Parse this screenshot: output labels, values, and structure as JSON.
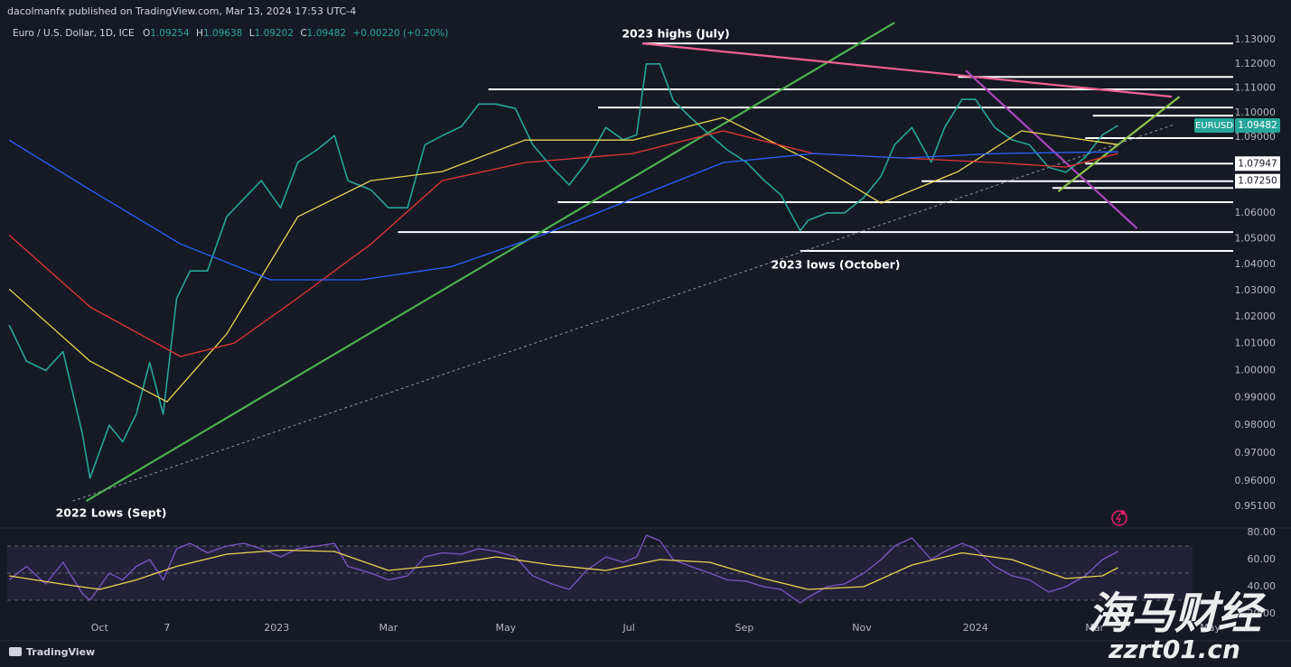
{
  "header": {
    "publisher": "dacolmanfx published on TradingView.com, Mar 13, 2024 17:53 UTC-4",
    "symbol": "Euro / U.S. Dollar, 1D, ICE",
    "ohlc": [
      {
        "label": "O",
        "value": 1.09254
      },
      {
        "label": "H",
        "value": 1.09638
      },
      {
        "label": "L",
        "value": 1.09202
      },
      {
        "label": "C",
        "value": 1.09482
      }
    ],
    "change": "+0.00220 (+0.20%)"
  },
  "footer": "TradingView",
  "watermark": [
    "海马财经",
    "zzrt01.cn"
  ],
  "chart_data": [
    {
      "type": "line",
      "log_scale": true,
      "grid": false,
      "xlim": [
        -48,
        618
      ],
      "ylim": [
        0.9441,
        1.1437
      ],
      "xticks": [
        {
          "value": 0,
          "label": "Oct"
        },
        {
          "value": 35,
          "label": "7"
        },
        {
          "value": 92,
          "label": "2023"
        },
        {
          "value": 150,
          "label": "Mar"
        },
        {
          "value": 211,
          "label": "May"
        },
        {
          "value": 275,
          "label": "Jul"
        },
        {
          "value": 335,
          "label": "Sep"
        },
        {
          "value": 396,
          "label": "Nov"
        },
        {
          "value": 455,
          "label": "2024"
        },
        {
          "value": 517,
          "label": "Mar"
        },
        {
          "value": 577,
          "label": "May"
        }
      ],
      "yticks": [
        {
          "value": 1.13,
          "label": "1.13000"
        },
        {
          "value": 1.12,
          "label": "1.12000"
        },
        {
          "value": 1.11,
          "label": "1.11000"
        },
        {
          "value": 1.1,
          "label": "1.10000"
        },
        {
          "value": 1.09,
          "label": "1.09000"
        },
        {
          "value": 1.06,
          "label": "1.06000"
        },
        {
          "value": 1.05,
          "label": "1.05000"
        },
        {
          "value": 1.04,
          "label": "1.04000"
        },
        {
          "value": 1.03,
          "label": "1.03000"
        },
        {
          "value": 1.02,
          "label": "1.02000"
        },
        {
          "value": 1.01,
          "label": "1.01000"
        },
        {
          "value": 1,
          "label": "1.00000"
        },
        {
          "value": 0.99,
          "label": "0.99000"
        },
        {
          "value": 0.98,
          "label": "0.98000"
        },
        {
          "value": 0.97,
          "label": "0.97000"
        },
        {
          "value": 0.96,
          "label": "0.96000"
        },
        {
          "value": 0.951,
          "label": "0.95100"
        }
      ],
      "series": [
        {
          "name": "EURUSD",
          "color": "#26a69a",
          "x": [
            -47,
            -38,
            -28,
            -19,
            -9,
            -5,
            5,
            12,
            19,
            26,
            33,
            40,
            47,
            56,
            66,
            75,
            84,
            94,
            103,
            113,
            122,
            129,
            141,
            150,
            160,
            169,
            178,
            188,
            197,
            206,
            216,
            225,
            235,
            244,
            253,
            263,
            272,
            279,
            284,
            291,
            298,
            307,
            317,
            326,
            336,
            345,
            354,
            364,
            368,
            378,
            387,
            397,
            406,
            413,
            422,
            432,
            439,
            448,
            455,
            465,
            474,
            483,
            493,
            502,
            512,
            521,
            529
          ],
          "values": [
            1.017,
            1.0035,
            1.0,
            1.007,
            0.977,
            0.961,
            0.98,
            0.974,
            0.984,
            1.003,
            0.984,
            1.027,
            1.0375,
            1.0375,
            1.0585,
            1.0656,
            1.0727,
            1.062,
            1.08,
            1.085,
            1.0907,
            1.0727,
            1.069,
            1.062,
            1.062,
            1.087,
            1.0907,
            1.0944,
            1.1035,
            1.1035,
            1.1017,
            1.087,
            1.078,
            1.071,
            1.08,
            1.094,
            1.089,
            1.091,
            1.12,
            1.12,
            1.105,
            1.098,
            1.091,
            1.085,
            1.08,
            1.073,
            1.067,
            1.053,
            1.057,
            1.06,
            1.06,
            1.066,
            1.0745,
            1.087,
            1.094,
            1.08,
            1.094,
            1.1054,
            1.1054,
            1.094,
            1.089,
            1.087,
            1.078,
            1.076,
            1.082,
            1.091,
            1.0948
          ]
        },
        {
          "color": "#e8d44d",
          "x": [
            -47,
            -5,
            35,
            66,
            103,
            141,
            178,
            221,
            277,
            324,
            371,
            406,
            446,
            479,
            529
          ],
          "values": [
            1.0306,
            1.0035,
            0.9885,
            1.0136,
            1.0585,
            1.0727,
            1.0763,
            1.0889,
            1.0889,
            1.098,
            1.0799,
            1.0638,
            1.0763,
            1.0926,
            1.0871
          ]
        },
        {
          "color": "#e53935",
          "x": [
            -47,
            -5,
            42,
            70,
            103,
            141,
            178,
            221,
            277,
            324,
            371,
            418,
            465,
            502,
            529
          ],
          "values": [
            1.0514,
            1.0238,
            1.0052,
            1.0102,
            1.0272,
            1.0479,
            1.0727,
            1.0799,
            1.0835,
            1.0926,
            1.0835,
            1.0817,
            1.0799,
            1.0781,
            1.0835
          ]
        },
        {
          "color": "#2962ff",
          "x": [
            -47,
            -5,
            42,
            89,
            136,
            183,
            230,
            277,
            324,
            371,
            418,
            465,
            529
          ],
          "values": [
            1.0889,
            1.0691,
            1.0479,
            1.0341,
            1.0341,
            1.0392,
            1.0514,
            1.0656,
            1.0799,
            1.0835,
            1.0817,
            1.0835,
            1.0842
          ]
        }
      ],
      "levels": [
        {
          "value": 1.1285,
          "start": 282
        },
        {
          "value": 1.1146,
          "start": 446
        },
        {
          "value": 1.1095,
          "start": 202
        },
        {
          "value": 1.1021,
          "start": 259
        },
        {
          "value": 1.0988,
          "start": 516
        },
        {
          "value": 1.0897,
          "start": 512
        },
        {
          "value": 1.07947,
          "start": 512
        },
        {
          "value": 1.0725,
          "start": 427
        },
        {
          "value": 1.0698,
          "start": 495
        },
        {
          "value": 1.0642,
          "start": 238
        },
        {
          "value": 1.0525,
          "start": 155
        },
        {
          "value": 1.0452,
          "start": 364
        }
      ],
      "trendlines": [
        {
          "color": "#4caf50",
          "x": [
            -7,
            413
          ],
          "values": [
            0.9529,
            1.1372
          ]
        },
        {
          "color": "#f06292",
          "x": [
            282,
            557
          ],
          "values": [
            1.1285,
            1.1065
          ]
        },
        {
          "color": "#ab47bc",
          "x": [
            450,
            539
          ],
          "values": [
            1.1173,
            1.0539
          ]
        },
        {
          "color": "#8bc34a",
          "x": [
            498,
            561
          ],
          "values": [
            1.0684,
            1.1065
          ]
        },
        {
          "color": "#9598a1",
          "style": "dotted",
          "x": [
            -14,
            558
          ],
          "values": [
            0.9529,
            1.0951
          ]
        }
      ],
      "price_tags": [
        {
          "name": "EURUSD",
          "value": 1.09482,
          "label": "1.09482",
          "color": "#26a69a"
        },
        {
          "value": 1.07947,
          "label": "1.07947",
          "color": "#ffffff"
        },
        {
          "value": 1.0725,
          "label": "1.07250",
          "color": "#ffffff"
        }
      ],
      "annotations": [
        "2023 highs (July)",
        "2023 lows (October)",
        "2022 Lows (Sept)"
      ]
    },
    {
      "type": "line",
      "xlim": [
        -48,
        618
      ],
      "ylim": [
        18.7,
        81.3
      ],
      "yticks": [
        {
          "value": 80,
          "label": "80.00"
        },
        {
          "value": 60,
          "label": "60.00"
        },
        {
          "value": 40,
          "label": "40.00"
        },
        {
          "value": 20,
          "label": "20.00"
        }
      ],
      "band": [
        30,
        70
      ],
      "guides": [
        70,
        50,
        30
      ],
      "series": [
        {
          "color": "#7e57c2",
          "x": [
            -47,
            -38,
            -28,
            -19,
            -9,
            -5,
            5,
            12,
            19,
            26,
            33,
            40,
            47,
            56,
            66,
            75,
            84,
            94,
            103,
            113,
            122,
            129,
            141,
            150,
            160,
            169,
            178,
            188,
            197,
            206,
            216,
            225,
            235,
            244,
            253,
            263,
            272,
            279,
            284,
            291,
            298,
            307,
            317,
            326,
            336,
            345,
            354,
            364,
            368,
            378,
            387,
            397,
            406,
            413,
            422,
            432,
            439,
            448,
            455,
            465,
            474,
            483,
            493,
            502,
            512,
            521,
            529
          ],
          "values": [
            45,
            55,
            42,
            58,
            35,
            30,
            50,
            45,
            55,
            60,
            45,
            68,
            72,
            65,
            70,
            72,
            68,
            62,
            68,
            70,
            72,
            55,
            50,
            45,
            48,
            62,
            65,
            64,
            68,
            66,
            62,
            48,
            42,
            38,
            52,
            62,
            58,
            62,
            78,
            74,
            60,
            55,
            50,
            45,
            44,
            40,
            38,
            28,
            32,
            40,
            42,
            50,
            60,
            70,
            76,
            60,
            66,
            72,
            68,
            55,
            48,
            45,
            36,
            40,
            48,
            60,
            66
          ]
        },
        {
          "color": "#e8d44d",
          "x": [
            -47,
            -20,
            0,
            19,
            40,
            66,
            94,
            122,
            150,
            178,
            206,
            235,
            263,
            291,
            317,
            345,
            368,
            397,
            422,
            448,
            474,
            502,
            521,
            529
          ],
          "values": [
            48,
            42,
            38,
            45,
            55,
            64,
            67,
            66,
            52,
            56,
            62,
            56,
            52,
            60,
            58,
            46,
            38,
            40,
            56,
            65,
            60,
            46,
            48,
            54
          ]
        }
      ]
    }
  ]
}
